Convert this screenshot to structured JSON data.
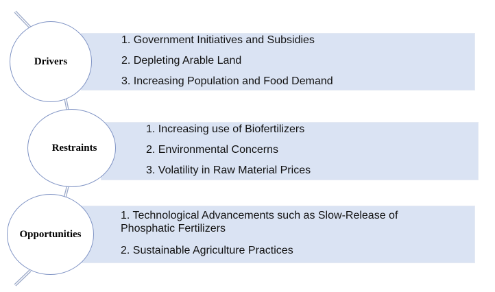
{
  "groups": [
    {
      "label": "Drivers",
      "items": [
        "1. Government Initiatives and Subsidies",
        "2. Depleting Arable Land",
        "3. Increasing Population and Food Demand"
      ]
    },
    {
      "label": "Restraints",
      "items": [
        "1. Increasing use of Biofertilizers",
        "2. Environmental Concerns",
        "3. Volatility in Raw Material Prices"
      ]
    },
    {
      "label": "Opportunities",
      "items": [
        "1. Technological Advancements such as Slow-Release of Phosphatic Fertilizers",
        "2. Sustainable Agriculture Practices"
      ]
    }
  ],
  "colors": {
    "box_fill": "#dae3f3",
    "circle_border": "#7f93c4"
  }
}
